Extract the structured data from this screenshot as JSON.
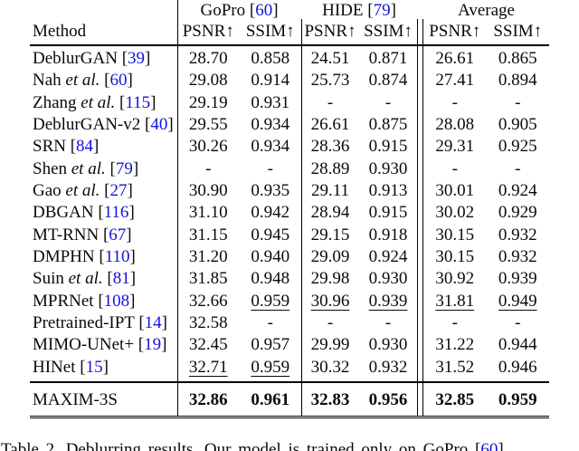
{
  "colors": {
    "link_blue": "#1212dd",
    "text": "#0a0a0a",
    "rule": "#000000"
  },
  "table": {
    "method_header": "Method",
    "col_groups": [
      {
        "label": "GoPro",
        "ob": " [",
        "cite": "60",
        "cb": "]"
      },
      {
        "label": "HIDE",
        "ob": " [",
        "cite": "79",
        "cb": "]"
      },
      {
        "label": "Average",
        "ob": "",
        "cite": "",
        "cb": ""
      }
    ],
    "metric_headers": [
      "PSNR↑",
      "SSIM↑",
      "PSNR↑",
      "SSIM↑",
      "PSNR↑",
      "SSIM↑"
    ],
    "rows": [
      {
        "name": "DeblurGAN",
        "etal": "",
        "ob": " [",
        "cite": "39",
        "cb": "]",
        "vals": [
          {
            "v": "28.70",
            "s": ""
          },
          {
            "v": "0.858",
            "s": ""
          },
          {
            "v": "24.51",
            "s": ""
          },
          {
            "v": "0.871",
            "s": ""
          },
          {
            "v": "26.61",
            "s": ""
          },
          {
            "v": "0.865",
            "s": ""
          }
        ]
      },
      {
        "name": "Nah",
        "etal": " et al.",
        "ob": " [",
        "cite": "60",
        "cb": "]",
        "vals": [
          {
            "v": "29.08",
            "s": ""
          },
          {
            "v": "0.914",
            "s": ""
          },
          {
            "v": "25.73",
            "s": ""
          },
          {
            "v": "0.874",
            "s": ""
          },
          {
            "v": "27.41",
            "s": ""
          },
          {
            "v": "0.894",
            "s": ""
          }
        ]
      },
      {
        "name": "Zhang",
        "etal": " et al.",
        "ob": " [",
        "cite": "115",
        "cb": "]",
        "vals": [
          {
            "v": "29.19",
            "s": ""
          },
          {
            "v": "0.931",
            "s": ""
          },
          {
            "v": "-",
            "s": ""
          },
          {
            "v": "-",
            "s": ""
          },
          {
            "v": "-",
            "s": ""
          },
          {
            "v": "-",
            "s": ""
          }
        ]
      },
      {
        "name": "DeblurGAN-v2",
        "etal": "",
        "ob": " [",
        "cite": "40",
        "cb": "]",
        "vals": [
          {
            "v": "29.55",
            "s": ""
          },
          {
            "v": "0.934",
            "s": ""
          },
          {
            "v": "26.61",
            "s": ""
          },
          {
            "v": "0.875",
            "s": ""
          },
          {
            "v": "28.08",
            "s": ""
          },
          {
            "v": "0.905",
            "s": ""
          }
        ]
      },
      {
        "name": "SRN",
        "etal": "",
        "ob": " [",
        "cite": "84",
        "cb": "]",
        "vals": [
          {
            "v": "30.26",
            "s": ""
          },
          {
            "v": "0.934",
            "s": ""
          },
          {
            "v": "28.36",
            "s": ""
          },
          {
            "v": "0.915",
            "s": ""
          },
          {
            "v": "29.31",
            "s": ""
          },
          {
            "v": "0.925",
            "s": ""
          }
        ]
      },
      {
        "name": "Shen",
        "etal": " et al.",
        "ob": " [",
        "cite": "79",
        "cb": "]",
        "vals": [
          {
            "v": "-",
            "s": ""
          },
          {
            "v": "-",
            "s": ""
          },
          {
            "v": "28.89",
            "s": ""
          },
          {
            "v": "0.930",
            "s": ""
          },
          {
            "v": "-",
            "s": ""
          },
          {
            "v": "-",
            "s": ""
          }
        ]
      },
      {
        "name": "Gao",
        "etal": " et al.",
        "ob": " [",
        "cite": "27",
        "cb": "]",
        "vals": [
          {
            "v": "30.90",
            "s": ""
          },
          {
            "v": "0.935",
            "s": ""
          },
          {
            "v": "29.11",
            "s": ""
          },
          {
            "v": "0.913",
            "s": ""
          },
          {
            "v": "30.01",
            "s": ""
          },
          {
            "v": "0.924",
            "s": ""
          }
        ]
      },
      {
        "name": "DBGAN",
        "etal": "",
        "ob": " [",
        "cite": "116",
        "cb": "]",
        "vals": [
          {
            "v": "31.10",
            "s": ""
          },
          {
            "v": "0.942",
            "s": ""
          },
          {
            "v": "28.94",
            "s": ""
          },
          {
            "v": "0.915",
            "s": ""
          },
          {
            "v": "30.02",
            "s": ""
          },
          {
            "v": "0.929",
            "s": ""
          }
        ]
      },
      {
        "name": "MT-RNN",
        "etal": "",
        "ob": " [",
        "cite": "67",
        "cb": "]",
        "vals": [
          {
            "v": "31.15",
            "s": ""
          },
          {
            "v": "0.945",
            "s": ""
          },
          {
            "v": "29.15",
            "s": ""
          },
          {
            "v": "0.918",
            "s": ""
          },
          {
            "v": "30.15",
            "s": ""
          },
          {
            "v": "0.932",
            "s": ""
          }
        ]
      },
      {
        "name": "DMPHN",
        "etal": "",
        "ob": " [",
        "cite": "110",
        "cb": "]",
        "vals": [
          {
            "v": "31.20",
            "s": ""
          },
          {
            "v": "0.940",
            "s": ""
          },
          {
            "v": "29.09",
            "s": ""
          },
          {
            "v": "0.924",
            "s": ""
          },
          {
            "v": "30.15",
            "s": ""
          },
          {
            "v": "0.932",
            "s": ""
          }
        ]
      },
      {
        "name": "Suin",
        "etal": " et al.",
        "ob": " [",
        "cite": "81",
        "cb": "]",
        "vals": [
          {
            "v": "31.85",
            "s": ""
          },
          {
            "v": "0.948",
            "s": ""
          },
          {
            "v": "29.98",
            "s": ""
          },
          {
            "v": "0.930",
            "s": ""
          },
          {
            "v": "30.92",
            "s": ""
          },
          {
            "v": "0.939",
            "s": ""
          }
        ]
      },
      {
        "name": "MPRNet",
        "etal": "",
        "ob": " [",
        "cite": "108",
        "cb": "]",
        "vals": [
          {
            "v": "32.66",
            "s": ""
          },
          {
            "v": "0.959",
            "s": "u"
          },
          {
            "v": "30.96",
            "s": "u"
          },
          {
            "v": "0.939",
            "s": "u"
          },
          {
            "v": "31.81",
            "s": "u"
          },
          {
            "v": "0.949",
            "s": "u"
          }
        ]
      },
      {
        "name": "Pretrained-IPT",
        "etal": "",
        "ob": " [",
        "cite": "14",
        "cb": "]",
        "vals": [
          {
            "v": "32.58",
            "s": ""
          },
          {
            "v": "-",
            "s": ""
          },
          {
            "v": "-",
            "s": ""
          },
          {
            "v": "-",
            "s": ""
          },
          {
            "v": "-",
            "s": ""
          },
          {
            "v": "-",
            "s": ""
          }
        ]
      },
      {
        "name": "MIMO-UNet+",
        "etal": "",
        "ob": " [",
        "cite": "19",
        "cb": "]",
        "vals": [
          {
            "v": "32.45",
            "s": ""
          },
          {
            "v": "0.957",
            "s": ""
          },
          {
            "v": "29.99",
            "s": ""
          },
          {
            "v": "0.930",
            "s": ""
          },
          {
            "v": "31.22",
            "s": ""
          },
          {
            "v": "0.944",
            "s": ""
          }
        ]
      },
      {
        "name": "HINet",
        "etal": "",
        "ob": " [",
        "cite": "15",
        "cb": "]",
        "vals": [
          {
            "v": "32.71",
            "s": "u"
          },
          {
            "v": "0.959",
            "s": "u"
          },
          {
            "v": "30.32",
            "s": ""
          },
          {
            "v": "0.932",
            "s": ""
          },
          {
            "v": "31.52",
            "s": ""
          },
          {
            "v": "0.946",
            "s": ""
          }
        ]
      }
    ],
    "final_row": {
      "name": "MAXIM-3S",
      "etal": "",
      "ob": "",
      "cite": "",
      "cb": "",
      "vals": [
        {
          "v": "32.86",
          "s": "b"
        },
        {
          "v": "0.961",
          "s": "b"
        },
        {
          "v": "32.83",
          "s": "b"
        },
        {
          "v": "0.956",
          "s": "b"
        },
        {
          "v": "32.85",
          "s": "b"
        },
        {
          "v": "0.959",
          "s": "b"
        }
      ]
    }
  },
  "caption": {
    "label": "Table 2.",
    "body": " Deblurring results. Our model is trained only on GoPro",
    "ob": " [",
    "cite": "60",
    "cb": "]"
  }
}
